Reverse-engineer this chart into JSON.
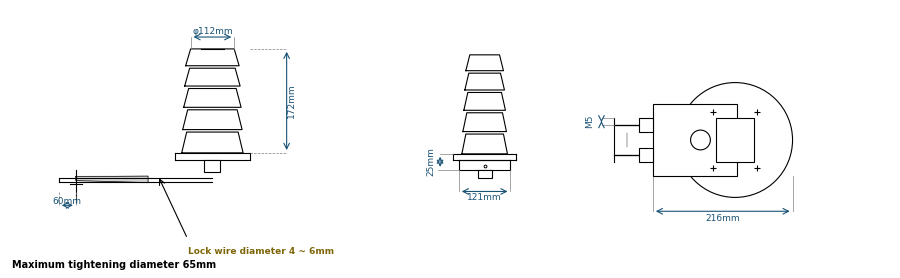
{
  "bg_color": "#ffffff",
  "line_color": "#000000",
  "dim_color": "#1a5276",
  "annotation_color": "#7d6608",
  "fig_width": 9.0,
  "fig_height": 2.78,
  "dpi": 100,
  "labels": {
    "phi112": "φ112mm",
    "dim172": "172mm",
    "dim60": "60mm",
    "dim25": "25mm",
    "dim121": "121mm",
    "dim216": "216mm",
    "m5": "M5",
    "lock_wire": "Lock wire diameter 4 ~ 6mm",
    "max_tighten": "Maximum tightening diameter 65mm"
  }
}
